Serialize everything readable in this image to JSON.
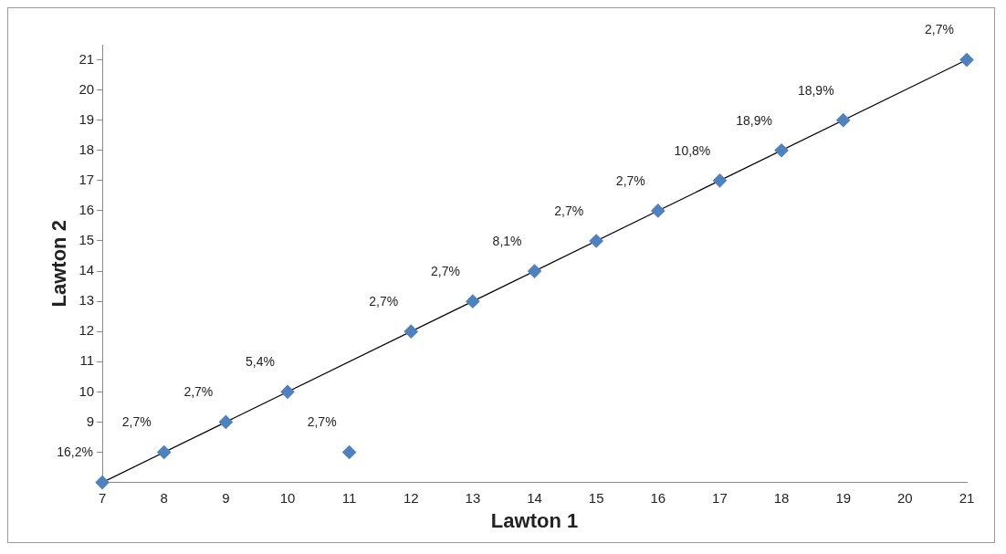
{
  "chart_data": {
    "type": "scatter",
    "xlabel": "Lawton 1",
    "ylabel": "Lawton 2",
    "xlim": [
      7,
      21
    ],
    "ylim": [
      7,
      21.5
    ],
    "xticks": [
      7,
      8,
      9,
      10,
      11,
      12,
      13,
      14,
      15,
      16,
      17,
      18,
      19,
      20,
      21
    ],
    "yticks": [
      {
        "value": 7,
        "label": null
      },
      {
        "value": 8,
        "label": null
      },
      9,
      10,
      11,
      12,
      13,
      14,
      15,
      16,
      17,
      18,
      19,
      20,
      21
    ],
    "grid": false,
    "legend": false,
    "marker": "diamond",
    "series": [
      {
        "color": "#4f81bd",
        "x": [
          7,
          8,
          9,
          10,
          11,
          12,
          13,
          14,
          15,
          16,
          17,
          18,
          19,
          21
        ],
        "values": [
          7,
          8,
          9,
          10,
          8,
          12,
          13,
          14,
          15,
          16,
          17,
          18,
          19,
          21
        ]
      },
      {
        "type": "line",
        "color": "#000000",
        "line_style": "solid",
        "marker": "none",
        "x": [
          7,
          21
        ],
        "values": [
          7,
          21
        ]
      }
    ],
    "annotations": [
      {
        "text": "16,2%",
        "x": 7,
        "y": 7
      },
      {
        "text": "2,7%",
        "x": 8,
        "y": 8
      },
      {
        "text": "2,7%",
        "x": 9,
        "y": 9
      },
      {
        "text": "5,4%",
        "x": 10,
        "y": 10
      },
      {
        "text": "2,7%",
        "x": 11,
        "y": 8
      },
      {
        "text": "2,7%",
        "x": 12,
        "y": 12
      },
      {
        "text": "2,7%",
        "x": 13,
        "y": 13
      },
      {
        "text": "8,1%",
        "x": 14,
        "y": 14
      },
      {
        "text": "2,7%",
        "x": 15,
        "y": 15
      },
      {
        "text": "2,7%",
        "x": 16,
        "y": 16
      },
      {
        "text": "10,8%",
        "x": 17,
        "y": 17
      },
      {
        "text": "18,9%",
        "x": 18,
        "y": 18
      },
      {
        "text": "18,9%",
        "x": 19,
        "y": 19
      },
      {
        "text": "2,7%",
        "x": 21,
        "y": 21
      }
    ]
  }
}
